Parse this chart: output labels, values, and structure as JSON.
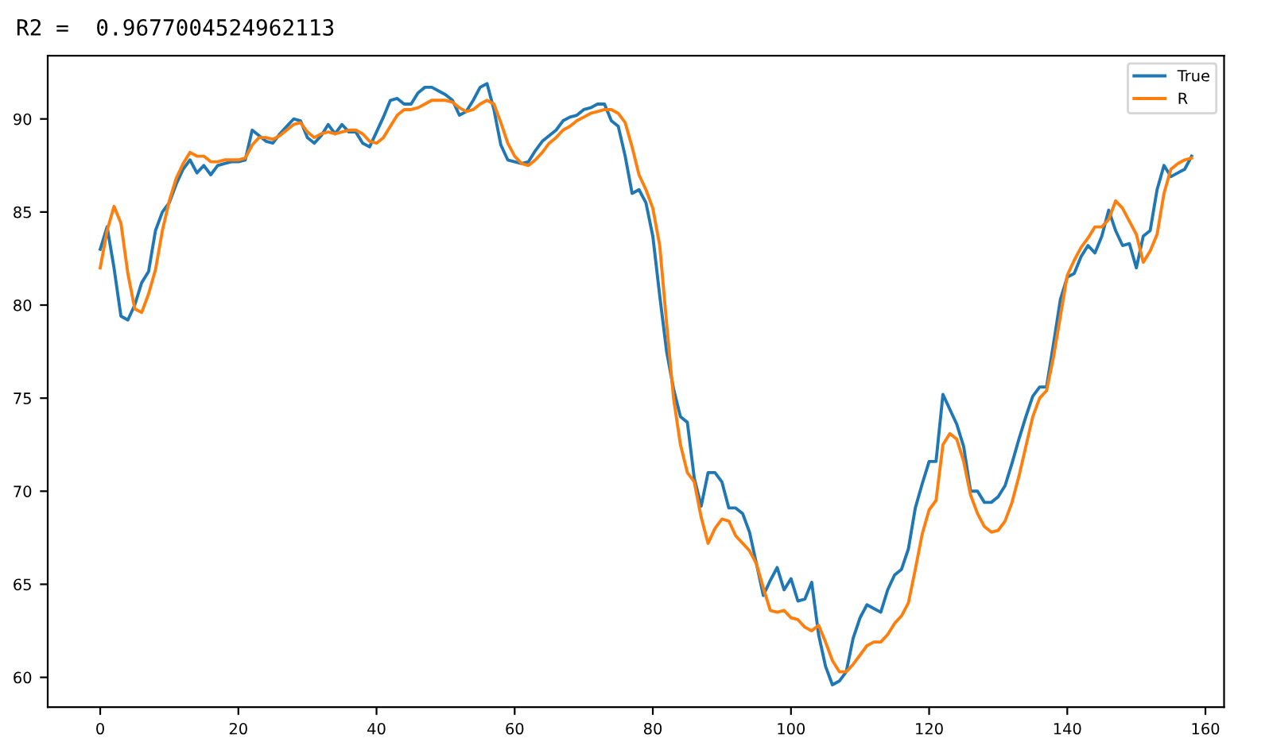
{
  "chart_data": {
    "type": "line",
    "title": "R2 =  0.9677004524962113",
    "x": [
      0,
      1,
      2,
      3,
      4,
      5,
      6,
      7,
      8,
      9,
      10,
      11,
      12,
      13,
      14,
      15,
      16,
      17,
      18,
      19,
      20,
      21,
      22,
      23,
      24,
      25,
      26,
      27,
      28,
      29,
      30,
      31,
      32,
      33,
      34,
      35,
      36,
      37,
      38,
      39,
      40,
      41,
      42,
      43,
      44,
      45,
      46,
      47,
      48,
      49,
      50,
      51,
      52,
      53,
      54,
      55,
      56,
      57,
      58,
      59,
      60,
      61,
      62,
      63,
      64,
      65,
      66,
      67,
      68,
      69,
      70,
      71,
      72,
      73,
      74,
      75,
      76,
      77,
      78,
      79,
      80,
      81,
      82,
      83,
      84,
      85,
      86,
      87,
      88,
      89,
      90,
      91,
      92,
      93,
      94,
      95,
      96,
      97,
      98,
      99,
      100,
      101,
      102,
      103,
      104,
      105,
      106,
      107,
      108,
      109,
      110,
      111,
      112,
      113,
      114,
      115,
      116,
      117,
      118,
      119,
      120,
      121,
      122,
      123,
      124,
      125,
      126,
      127,
      128,
      129,
      130,
      131,
      132,
      133,
      134,
      135,
      136,
      137,
      138,
      139,
      140,
      141,
      142,
      143,
      144,
      145,
      146,
      147,
      148,
      149,
      150,
      151,
      152,
      153,
      154,
      155,
      156,
      157,
      158
    ],
    "series": [
      {
        "name": "True",
        "color": "#1f77b4",
        "values": [
          83.0,
          84.2,
          82,
          79.4,
          79.2,
          80,
          81.2,
          81.8,
          84,
          85,
          85.5,
          86.5,
          87.3,
          87.8,
          87.1,
          87.5,
          87,
          87.5,
          87.6,
          87.7,
          87.7,
          87.8,
          89.4,
          89.1,
          88.8,
          88.7,
          89.2,
          89.6,
          90,
          89.9,
          89,
          88.7,
          89.1,
          89.7,
          89.2,
          89.7,
          89.3,
          89.3,
          88.7,
          88.5,
          89.3,
          90.1,
          91,
          91.1,
          90.8,
          90.8,
          91.4,
          91.7,
          91.7,
          91.5,
          91.3,
          91,
          90.2,
          90.4,
          91,
          91.7,
          91.9,
          90.5,
          88.6,
          87.8,
          87.7,
          87.6,
          87.7,
          88.3,
          88.8,
          89.1,
          89.4,
          89.9,
          90.1,
          90.2,
          90.5,
          90.6,
          90.8,
          90.8,
          89.9,
          89.6,
          88,
          86,
          86.2,
          85.5,
          83.7,
          80.5,
          77.5,
          75.5,
          74,
          73.7,
          70.7,
          69.2,
          71,
          71,
          70.5,
          69.1,
          69.1,
          68.8,
          67.8,
          66.1,
          64.4,
          65.2,
          65.9,
          64.7,
          65.3,
          64.1,
          64.2,
          65.1,
          62.3,
          60.6,
          59.6,
          59.8,
          60.3,
          62.1,
          63.2,
          63.9,
          63.7,
          63.5,
          64.7,
          65.5,
          65.8,
          66.9,
          69.1,
          70.4,
          71.6,
          71.6,
          75.2,
          74.4,
          73.6,
          72.4,
          70,
          70,
          69.4,
          69.4,
          69.7,
          70.3,
          71.5,
          72.8,
          74,
          75.1,
          75.6,
          75.6,
          77.9,
          80.3,
          81.5,
          81.7,
          82.6,
          83.2,
          82.8,
          83.7,
          85.1,
          84,
          83.2,
          83.3,
          82,
          83.7,
          84,
          86.2,
          87.5,
          86.9,
          87.1,
          87.3,
          88
        ]
      },
      {
        "name": "R",
        "color": "#ff7f0e",
        "values": [
          82,
          84,
          85.3,
          84.4,
          81.7,
          79.8,
          79.6,
          80.6,
          81.9,
          84,
          85.6,
          86.8,
          87.6,
          88.2,
          88,
          88,
          87.7,
          87.7,
          87.8,
          87.8,
          87.8,
          87.9,
          88.6,
          89,
          89,
          88.9,
          89.1,
          89.4,
          89.7,
          89.8,
          89.3,
          89,
          89.2,
          89.3,
          89.2,
          89.3,
          89.4,
          89.4,
          89.2,
          88.8,
          88.7,
          89,
          89.6,
          90.2,
          90.5,
          90.5,
          90.6,
          90.8,
          91,
          91,
          91,
          90.9,
          90.6,
          90.4,
          90.5,
          90.8,
          91,
          90.8,
          89.8,
          88.7,
          88,
          87.6,
          87.5,
          87.8,
          88.2,
          88.7,
          89,
          89.4,
          89.6,
          89.9,
          90.1,
          90.3,
          90.4,
          90.5,
          90.5,
          90.3,
          89.8,
          88.5,
          87,
          86.2,
          85.2,
          83.2,
          79,
          75,
          72.5,
          71,
          70.5,
          68.6,
          67.2,
          68,
          68.5,
          68.4,
          67.6,
          67.2,
          66.8,
          66.1,
          64.8,
          63.6,
          63.5,
          63.6,
          63.2,
          63.1,
          62.7,
          62.5,
          62.8,
          61.9,
          60.9,
          60.3,
          60.3,
          60.7,
          61.2,
          61.7,
          61.9,
          61.9,
          62.3,
          62.9,
          63.3,
          64,
          65.8,
          67.7,
          69,
          69.5,
          72.5,
          73.1,
          72.8,
          71.6,
          69.8,
          68.8,
          68.1,
          67.8,
          67.9,
          68.4,
          69.4,
          70.8,
          72.4,
          74,
          75,
          75.4,
          77.2,
          79.4,
          81.6,
          82.4,
          83.1,
          83.6,
          84.2,
          84.2,
          84.6,
          85.6,
          85.2,
          84.5,
          83.8,
          82.3,
          82.9,
          83.8,
          86,
          87.3,
          87.6,
          87.8,
          87.9
        ]
      }
    ],
    "xlim": [
      -7.6,
      162.7
    ],
    "xticks": [
      0,
      20,
      40,
      60,
      80,
      100,
      120,
      140,
      160
    ],
    "ylim": [
      58.4,
      93.4
    ],
    "yticks": [
      60,
      65,
      70,
      75,
      80,
      85,
      90
    ],
    "legend": "top right",
    "grid": false,
    "marker": "none",
    "line_style": "solid"
  }
}
